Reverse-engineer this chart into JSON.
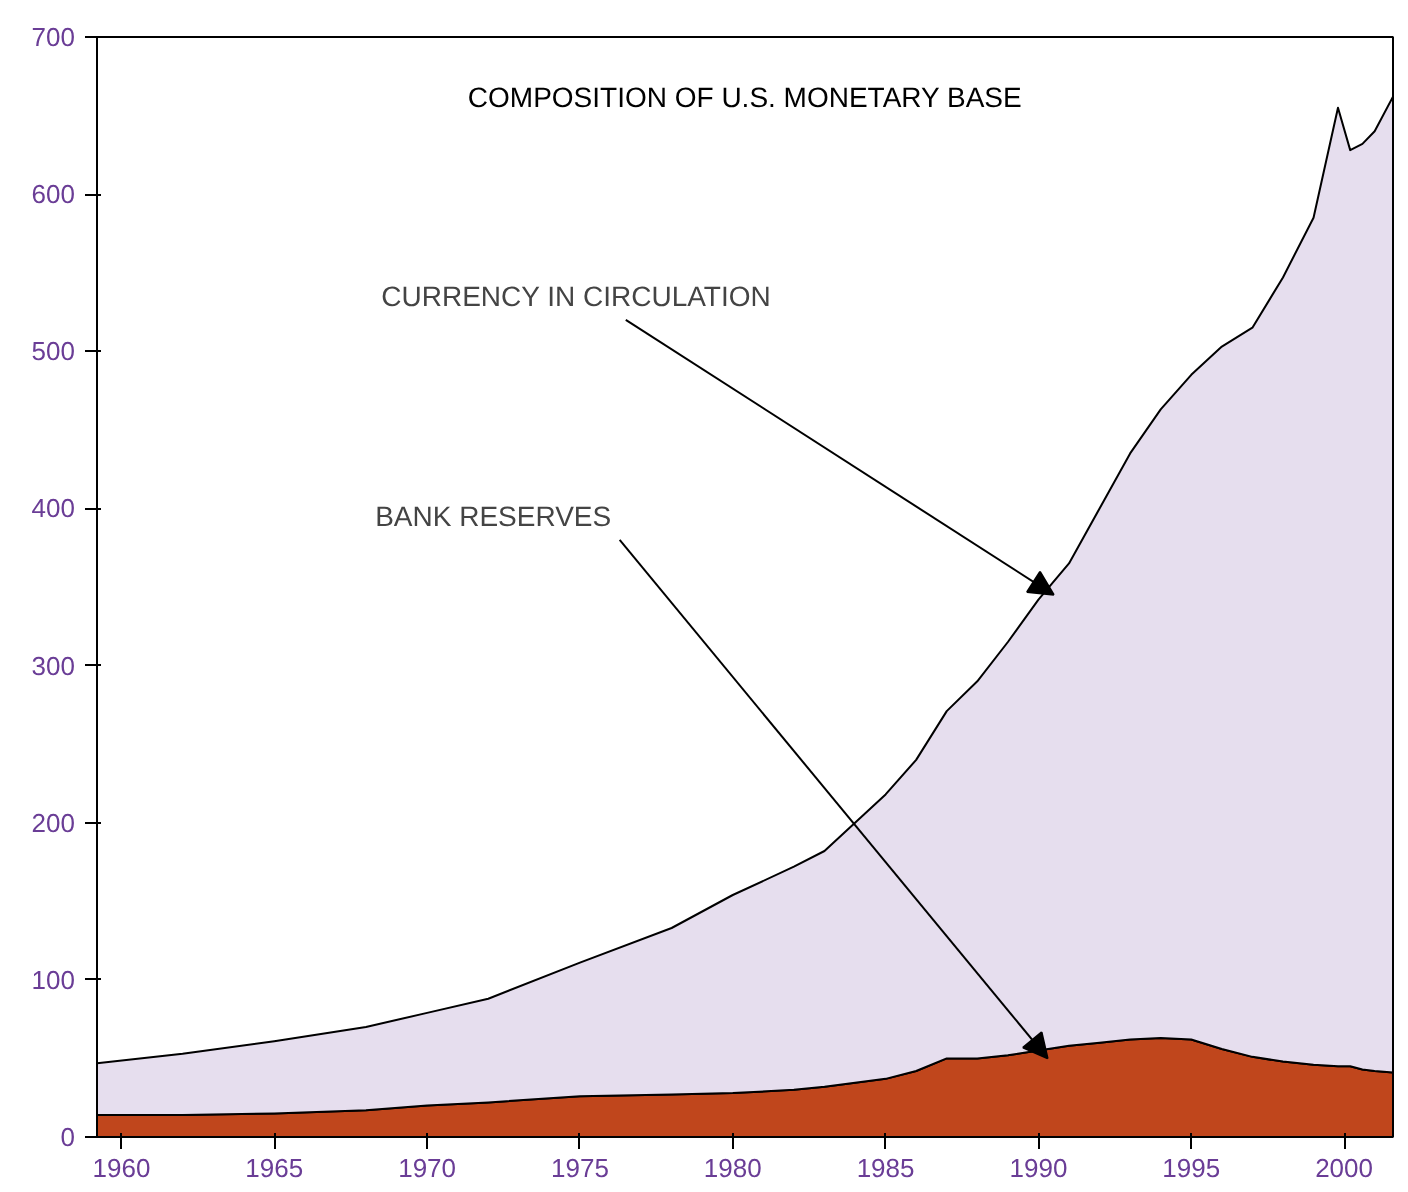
{
  "chart_data": {
    "type": "area",
    "stacked": true,
    "title": "COMPOSITION OF U.S. MONETARY BASE",
    "x": [
      1959.2,
      1962,
      1965,
      1968,
      1970,
      1972,
      1975,
      1978,
      1980,
      1982,
      1983,
      1985,
      1986,
      1987,
      1988,
      1989,
      1990,
      1991,
      1992,
      1993,
      1994,
      1995,
      1996,
      1997,
      1998,
      1999,
      1999.8,
      2000.2,
      2000.6,
      2001,
      2001.6
    ],
    "series": [
      {
        "color": "#c0461c",
        "values": [
          14,
          14,
          15,
          17,
          20,
          22,
          26,
          27,
          28,
          30,
          32,
          37,
          42,
          50,
          50,
          52,
          55,
          58,
          60,
          62,
          63,
          62,
          56,
          51,
          48,
          46,
          45,
          45,
          43,
          42,
          41
        ]
      },
      {
        "color": "#e6deee",
        "values": [
          33,
          39,
          46,
          53,
          59,
          66,
          85,
          106,
          126,
          142,
          150,
          181,
          198,
          221,
          240,
          263,
          287,
          307,
          340,
          373,
          400,
          423,
          447,
          464,
          499,
          539,
          610,
          583,
          589,
          598,
          621
        ]
      }
    ],
    "annotations": [
      {
        "text": "CURRENCY IN CIRCULATION",
        "x": 1990.5,
        "y": 345
      },
      {
        "text": "BANK RESERVES",
        "x": 1990.3,
        "y": 50
      }
    ],
    "xlim": [
      1959.2,
      2001.6
    ],
    "ylim": [
      0,
      700
    ],
    "xticks": [
      1960,
      1965,
      1970,
      1975,
      1980,
      1985,
      1990,
      1995,
      2000
    ],
    "yticks": [
      0,
      100,
      200,
      300,
      400,
      500,
      600,
      700
    ],
    "grid": false
  }
}
